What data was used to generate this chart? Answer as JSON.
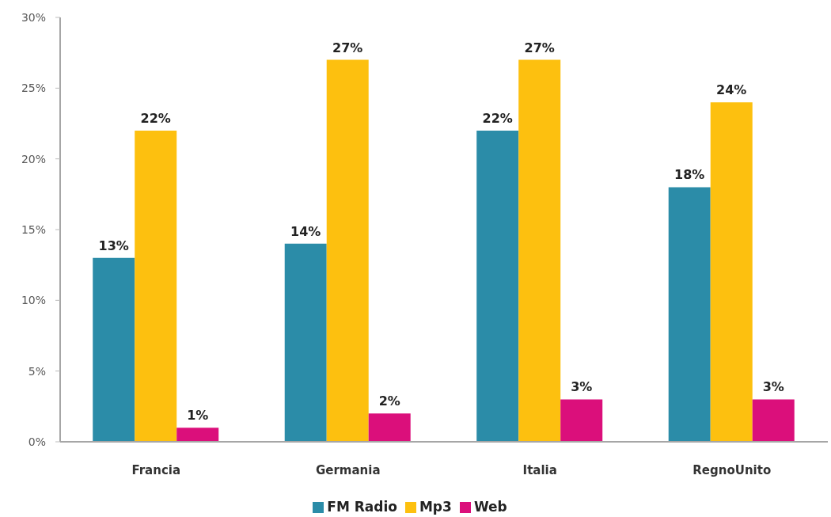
{
  "chart_data": {
    "type": "bar",
    "categories": [
      "Francia",
      "Germania",
      "Italia",
      "RegnoUnito"
    ],
    "series": [
      {
        "name": "FM Radio",
        "color": "#2b8ca8",
        "values": [
          13,
          14,
          22,
          18
        ],
        "value_labels": [
          "13%",
          "14%",
          "22%",
          "18%"
        ]
      },
      {
        "name": "Mp3",
        "color": "#fdc00f",
        "values": [
          22,
          27,
          27,
          24
        ],
        "value_labels": [
          "22%",
          "27%",
          "27%",
          "24%"
        ]
      },
      {
        "name": "Web",
        "color": "#db0f7b",
        "values": [
          1,
          2,
          3,
          3
        ],
        "value_labels": [
          "1%",
          "2%",
          "3%",
          "3%"
        ]
      }
    ],
    "ylim": [
      0,
      30
    ],
    "yticks": [
      {
        "value": 0,
        "label": "0%"
      },
      {
        "value": 5,
        "label": "5%"
      },
      {
        "value": 10,
        "label": "10%"
      },
      {
        "value": 15,
        "label": "15%"
      },
      {
        "value": 20,
        "label": "20%"
      },
      {
        "value": 25,
        "label": "25%"
      },
      {
        "value": 30,
        "label": "30%"
      }
    ],
    "legend": "bottom"
  }
}
